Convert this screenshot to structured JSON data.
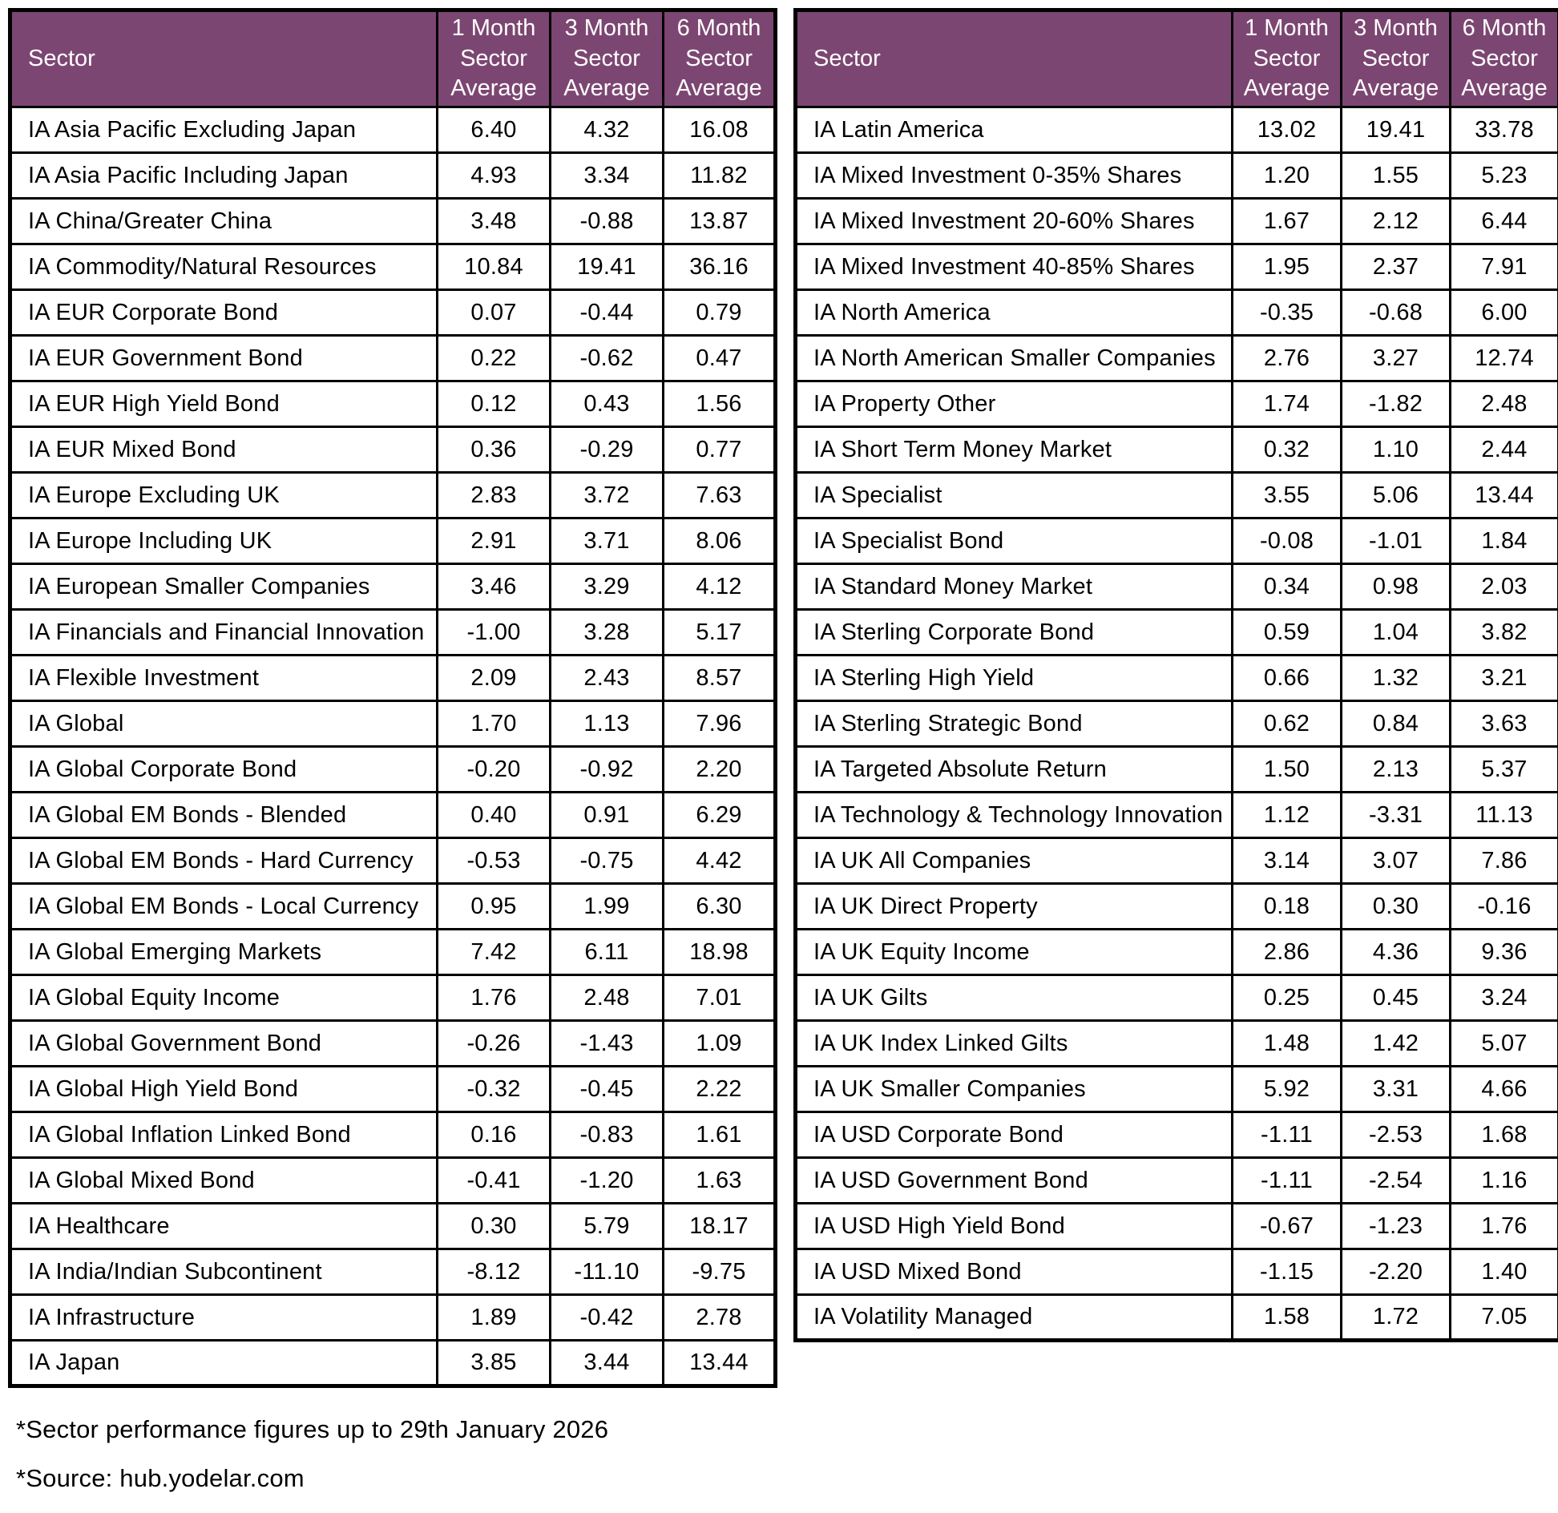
{
  "colors": {
    "header_bg": "#7c4672",
    "header_text": "#ffffff",
    "border": "#000000",
    "row_bg": "#ffffff",
    "text": "#000000"
  },
  "header_labels": {
    "sector": "Sector",
    "m1": "1 Month\nSector\nAverage",
    "m3": "3 Month\nSector\nAverage",
    "m6": "6 Month\nSector\nAverage"
  },
  "chart_data": [
    {
      "type": "table",
      "columns": [
        "Sector",
        "1 Month Sector Average",
        "3 Month Sector Average",
        "6 Month Sector Average"
      ],
      "rows": [
        {
          "sector": "IA Asia Pacific Excluding Japan",
          "m1": "6.40",
          "m3": "4.32",
          "m6": "16.08"
        },
        {
          "sector": "IA Asia Pacific Including Japan",
          "m1": "4.93",
          "m3": "3.34",
          "m6": "11.82"
        },
        {
          "sector": "IA China/Greater China",
          "m1": "3.48",
          "m3": "-0.88",
          "m6": "13.87"
        },
        {
          "sector": "IA Commodity/Natural Resources",
          "m1": "10.84",
          "m3": "19.41",
          "m6": "36.16"
        },
        {
          "sector": "IA EUR Corporate Bond",
          "m1": "0.07",
          "m3": "-0.44",
          "m6": "0.79"
        },
        {
          "sector": "IA EUR Government Bond",
          "m1": "0.22",
          "m3": "-0.62",
          "m6": "0.47"
        },
        {
          "sector": "IA EUR High Yield Bond",
          "m1": "0.12",
          "m3": "0.43",
          "m6": "1.56"
        },
        {
          "sector": "IA EUR Mixed Bond",
          "m1": "0.36",
          "m3": "-0.29",
          "m6": "0.77"
        },
        {
          "sector": "IA Europe Excluding UK",
          "m1": "2.83",
          "m3": "3.72",
          "m6": "7.63"
        },
        {
          "sector": "IA Europe Including UK",
          "m1": "2.91",
          "m3": "3.71",
          "m6": "8.06"
        },
        {
          "sector": "IA European Smaller Companies",
          "m1": "3.46",
          "m3": "3.29",
          "m6": "4.12"
        },
        {
          "sector": "IA Financials and Financial Innovation",
          "m1": "-1.00",
          "m3": "3.28",
          "m6": "5.17"
        },
        {
          "sector": "IA Flexible Investment",
          "m1": "2.09",
          "m3": "2.43",
          "m6": "8.57"
        },
        {
          "sector": "IA Global",
          "m1": "1.70",
          "m3": "1.13",
          "m6": "7.96"
        },
        {
          "sector": "IA Global Corporate Bond",
          "m1": "-0.20",
          "m3": "-0.92",
          "m6": "2.20"
        },
        {
          "sector": "IA Global EM Bonds - Blended",
          "m1": "0.40",
          "m3": "0.91",
          "m6": "6.29"
        },
        {
          "sector": "IA Global EM Bonds - Hard Currency",
          "m1": "-0.53",
          "m3": "-0.75",
          "m6": "4.42"
        },
        {
          "sector": "IA Global EM Bonds - Local Currency",
          "m1": "0.95",
          "m3": "1.99",
          "m6": "6.30"
        },
        {
          "sector": "IA Global Emerging Markets",
          "m1": "7.42",
          "m3": "6.11",
          "m6": "18.98"
        },
        {
          "sector": "IA Global Equity Income",
          "m1": "1.76",
          "m3": "2.48",
          "m6": "7.01"
        },
        {
          "sector": "IA Global Government Bond",
          "m1": "-0.26",
          "m3": "-1.43",
          "m6": "1.09"
        },
        {
          "sector": "IA Global High Yield Bond",
          "m1": "-0.32",
          "m3": "-0.45",
          "m6": "2.22"
        },
        {
          "sector": "IA Global Inflation Linked Bond",
          "m1": "0.16",
          "m3": "-0.83",
          "m6": "1.61"
        },
        {
          "sector": "IA Global Mixed Bond",
          "m1": "-0.41",
          "m3": "-1.20",
          "m6": "1.63"
        },
        {
          "sector": "IA Healthcare",
          "m1": "0.30",
          "m3": "5.79",
          "m6": "18.17"
        },
        {
          "sector": "IA India/Indian Subcontinent",
          "m1": "-8.12",
          "m3": "-11.10",
          "m6": "-9.75"
        },
        {
          "sector": "IA Infrastructure",
          "m1": "1.89",
          "m3": "-0.42",
          "m6": "2.78"
        },
        {
          "sector": "IA Japan",
          "m1": "3.85",
          "m3": "3.44",
          "m6": "13.44"
        }
      ]
    },
    {
      "type": "table",
      "columns": [
        "Sector",
        "1 Month Sector Average",
        "3 Month Sector Average",
        "6 Month Sector Average"
      ],
      "rows": [
        {
          "sector": "IA Latin America",
          "m1": "13.02",
          "m3": "19.41",
          "m6": "33.78"
        },
        {
          "sector": "IA Mixed Investment 0-35% Shares",
          "m1": "1.20",
          "m3": "1.55",
          "m6": "5.23"
        },
        {
          "sector": "IA Mixed Investment 20-60% Shares",
          "m1": "1.67",
          "m3": "2.12",
          "m6": "6.44"
        },
        {
          "sector": "IA Mixed Investment 40-85% Shares",
          "m1": "1.95",
          "m3": "2.37",
          "m6": "7.91"
        },
        {
          "sector": "IA North America",
          "m1": "-0.35",
          "m3": "-0.68",
          "m6": "6.00"
        },
        {
          "sector": "IA North American Smaller Companies",
          "m1": "2.76",
          "m3": "3.27",
          "m6": "12.74"
        },
        {
          "sector": "IA Property Other",
          "m1": "1.74",
          "m3": "-1.82",
          "m6": "2.48"
        },
        {
          "sector": "IA Short Term Money Market",
          "m1": "0.32",
          "m3": "1.10",
          "m6": "2.44"
        },
        {
          "sector": "IA Specialist",
          "m1": "3.55",
          "m3": "5.06",
          "m6": "13.44"
        },
        {
          "sector": "IA Specialist Bond",
          "m1": "-0.08",
          "m3": "-1.01",
          "m6": "1.84"
        },
        {
          "sector": "IA Standard Money Market",
          "m1": "0.34",
          "m3": "0.98",
          "m6": "2.03"
        },
        {
          "sector": "IA Sterling Corporate Bond",
          "m1": "0.59",
          "m3": "1.04",
          "m6": "3.82"
        },
        {
          "sector": "IA Sterling High Yield",
          "m1": "0.66",
          "m3": "1.32",
          "m6": "3.21"
        },
        {
          "sector": "IA Sterling Strategic Bond",
          "m1": "0.62",
          "m3": "0.84",
          "m6": "3.63"
        },
        {
          "sector": "IA Targeted Absolute Return",
          "m1": "1.50",
          "m3": "2.13",
          "m6": "5.37"
        },
        {
          "sector": "IA Technology & Technology Innovation",
          "m1": "1.12",
          "m3": "-3.31",
          "m6": "11.13"
        },
        {
          "sector": "IA UK All Companies",
          "m1": "3.14",
          "m3": "3.07",
          "m6": "7.86"
        },
        {
          "sector": "IA UK Direct Property",
          "m1": "0.18",
          "m3": "0.30",
          "m6": "-0.16"
        },
        {
          "sector": "IA UK Equity Income",
          "m1": "2.86",
          "m3": "4.36",
          "m6": "9.36"
        },
        {
          "sector": "IA UK Gilts",
          "m1": "0.25",
          "m3": "0.45",
          "m6": "3.24"
        },
        {
          "sector": "IA UK Index Linked Gilts",
          "m1": "1.48",
          "m3": "1.42",
          "m6": "5.07"
        },
        {
          "sector": "IA UK Smaller Companies",
          "m1": "5.92",
          "m3": "3.31",
          "m6": "4.66"
        },
        {
          "sector": "IA USD Corporate Bond",
          "m1": "-1.11",
          "m3": "-2.53",
          "m6": "1.68"
        },
        {
          "sector": "IA USD Government Bond",
          "m1": "-1.11",
          "m3": "-2.54",
          "m6": "1.16"
        },
        {
          "sector": "IA USD High Yield Bond",
          "m1": "-0.67",
          "m3": "-1.23",
          "m6": "1.76"
        },
        {
          "sector": "IA USD Mixed Bond",
          "m1": "-1.15",
          "m3": "-2.20",
          "m6": "1.40"
        },
        {
          "sector": "IA Volatility Managed",
          "m1": "1.58",
          "m3": "1.72",
          "m6": "7.05"
        }
      ]
    }
  ],
  "footnotes": {
    "performance_date": "*Sector performance figures up to 29th January 2026",
    "source": "*Source: hub.yodelar.com"
  }
}
